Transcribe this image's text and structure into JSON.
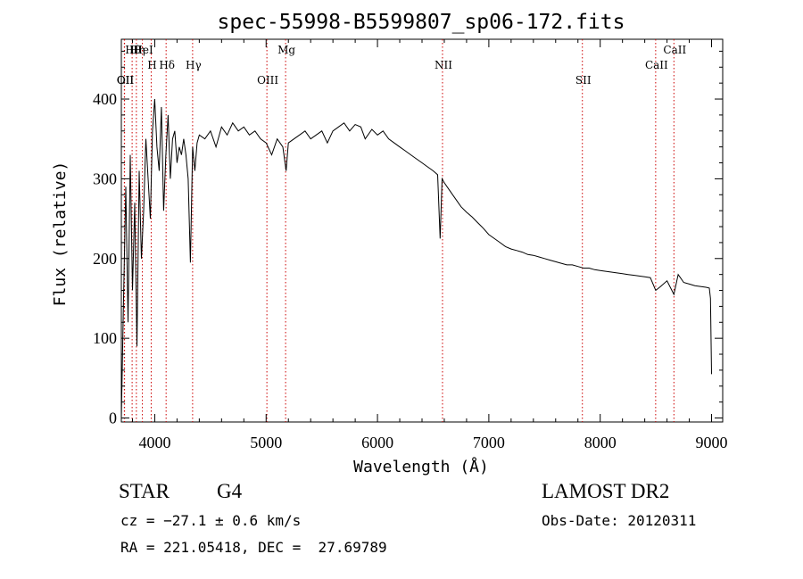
{
  "chart_data": {
    "type": "line",
    "title": "spec-55998-B5599807_sp06-172.fits",
    "xlabel": "Wavelength (Å)",
    "ylabel": "Flux (relative)",
    "xlim": [
      3700,
      9100
    ],
    "ylim": [
      -5,
      475
    ],
    "xticks": [
      4000,
      5000,
      6000,
      7000,
      8000,
      9000
    ],
    "yticks": [
      0,
      100,
      200,
      300,
      400
    ],
    "grid": false,
    "series": [
      {
        "x": [
          3700,
          3720,
          3740,
          3760,
          3780,
          3800,
          3820,
          3840,
          3860,
          3880,
          3900,
          3920,
          3940,
          3960,
          3980,
          4000,
          4020,
          4040,
          4060,
          4080,
          4100,
          4120,
          4140,
          4160,
          4180,
          4200,
          4220,
          4240,
          4260,
          4280,
          4300,
          4320,
          4340,
          4360,
          4380,
          4400,
          4450,
          4500,
          4550,
          4600,
          4650,
          4700,
          4750,
          4800,
          4850,
          4900,
          4950,
          5000,
          5050,
          5100,
          5150,
          5180,
          5200,
          5250,
          5300,
          5350,
          5400,
          5450,
          5500,
          5550,
          5600,
          5650,
          5700,
          5750,
          5800,
          5850,
          5890,
          5950,
          6000,
          6050,
          6100,
          6150,
          6200,
          6250,
          6300,
          6350,
          6400,
          6450,
          6500,
          6540,
          6563,
          6580,
          6600,
          6650,
          6700,
          6750,
          6800,
          6850,
          6900,
          6950,
          7000,
          7050,
          7100,
          7150,
          7200,
          7250,
          7300,
          7350,
          7400,
          7450,
          7500,
          7550,
          7600,
          7650,
          7700,
          7750,
          7800,
          7850,
          7900,
          7950,
          8000,
          8050,
          8100,
          8150,
          8200,
          8250,
          8300,
          8350,
          8400,
          8450,
          8498,
          8542,
          8600,
          8662,
          8700,
          8750,
          8800,
          8850,
          8900,
          8950,
          8980,
          8990,
          9000
        ],
        "values": [
          0,
          150,
          290,
          120,
          330,
          160,
          270,
          90,
          310,
          200,
          260,
          350,
          300,
          250,
          360,
          400,
          340,
          310,
          390,
          260,
          330,
          380,
          300,
          350,
          360,
          320,
          340,
          330,
          350,
          330,
          300,
          195,
          340,
          310,
          345,
          355,
          350,
          360,
          340,
          365,
          355,
          370,
          360,
          365,
          355,
          360,
          350,
          345,
          330,
          350,
          340,
          310,
          345,
          350,
          355,
          360,
          350,
          355,
          360,
          345,
          360,
          365,
          370,
          360,
          368,
          365,
          350,
          362,
          355,
          360,
          350,
          345,
          340,
          335,
          330,
          325,
          320,
          315,
          310,
          305,
          225,
          300,
          295,
          285,
          275,
          265,
          258,
          252,
          245,
          238,
          230,
          225,
          220,
          215,
          212,
          210,
          208,
          205,
          204,
          202,
          200,
          198,
          196,
          194,
          192,
          192,
          190,
          188,
          188,
          186,
          185,
          184,
          183,
          182,
          181,
          180,
          179,
          178,
          177,
          176,
          160,
          165,
          172,
          155,
          180,
          170,
          168,
          166,
          165,
          164,
          163,
          150,
          55
        ]
      }
    ],
    "line_markers": [
      {
        "label": "Hθ",
        "wl": 3797
      },
      {
        "label": "H",
        "wl": 3968
      },
      {
        "label": "OII",
        "wl": 3727
      },
      {
        "label": "HeI",
        "wl": 3889
      },
      {
        "label": "Hγ",
        "wl": 4340
      },
      {
        "label": "OII",
        "wl": 3729
      },
      {
        "label": "Hη",
        "wl": 3835
      },
      {
        "label": "Hδ",
        "wl": 4102
      },
      {
        "label": "OIII",
        "wl": 5007
      },
      {
        "label": "Mg",
        "wl": 5175
      },
      {
        "label": "NII",
        "wl": 6584
      },
      {
        "label": "SII",
        "wl": 7840
      },
      {
        "label": "CaII",
        "wl": 8662
      },
      {
        "label": "CaII",
        "wl": 8498
      }
    ],
    "marker_color": "#cc0000"
  },
  "footer": {
    "object_class": "STAR",
    "subclass": "G4",
    "survey": "LAMOST DR2",
    "cz": "cz = −27.1 ± 0.6 km/s",
    "obs_date": "Obs-Date: 20120311",
    "coords": "RA = 221.05418, DEC =  27.69789"
  }
}
